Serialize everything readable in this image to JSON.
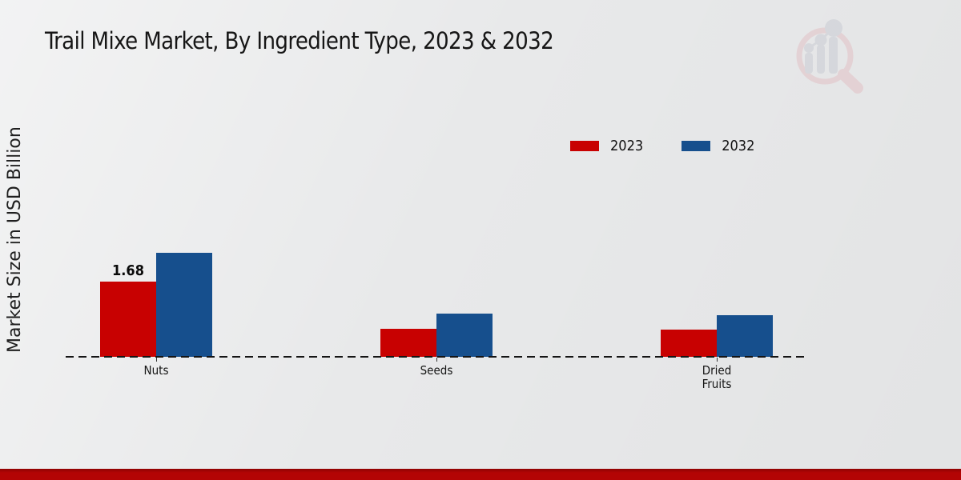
{
  "title": "Trail Mixe Market, By Ingredient Type, 2023 & 2032",
  "watermark_icon": "magnifier-bar-chart-logo",
  "colors": {
    "series_2023": "#c80101",
    "series_2032": "#164f8d",
    "baseline": "#141414",
    "footer_bar": "#b30404",
    "background": "#e8e9ea",
    "title_text": "#161616"
  },
  "legend": {
    "items": [
      {
        "label": "2023",
        "color": "#c80101"
      },
      {
        "label": "2032",
        "color": "#164f8d"
      }
    ]
  },
  "chart_data": {
    "type": "bar",
    "categories": [
      "Nuts",
      "Seeds",
      "Dried Fruits"
    ],
    "series": [
      {
        "name": "2023",
        "color": "#c80101",
        "values": [
          1.68,
          0.63,
          0.61
        ],
        "data_labels": [
          "1.68",
          "",
          ""
        ]
      },
      {
        "name": "2032",
        "color": "#164f8d",
        "values": [
          2.32,
          0.97,
          0.93
        ],
        "data_labels": [
          "",
          "",
          ""
        ]
      }
    ],
    "title": "Trail Mixe Market, By Ingredient Type, 2023 & 2032",
    "xlabel": "",
    "ylabel": "Market Size in USD Billion",
    "ylim": [
      0,
      2.5
    ],
    "grid": false,
    "legend_position": "top-right",
    "x_axis_style": "dashed-baseline",
    "value_label_note": "only Nuts 2023 bar shows its value (1.68)"
  }
}
